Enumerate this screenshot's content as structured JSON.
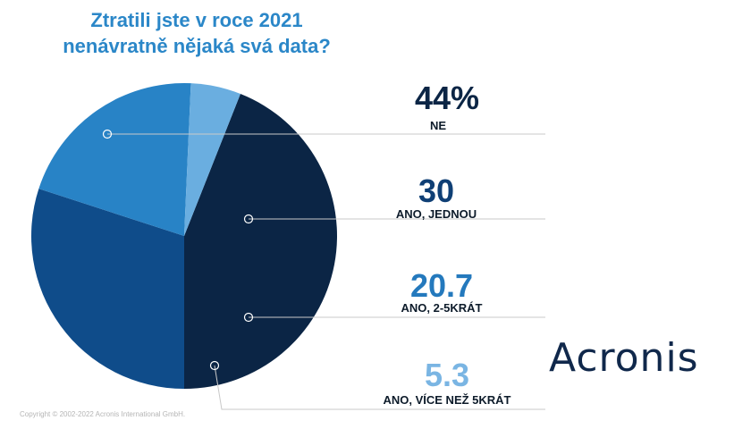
{
  "title_line1": "Ztratili jste v roce 2021",
  "title_line2": "nenávratně nějaká svá data?",
  "logo_text": "Acronis",
  "copyright": "Copyright © 2002-2022 Acronis International GmbH.",
  "chart_data": {
    "type": "pie",
    "title": "Ztratili jste v roce 2021 nenávratně nějaká svá data?",
    "slices": [
      {
        "label": "NE",
        "value_label": "44%",
        "value": 44,
        "color": "#0b2545",
        "value_color": "#0b2545"
      },
      {
        "label": "ANO, JEDNOU",
        "value_label": "30",
        "value": 30,
        "color": "#0f4c8a",
        "value_color": "#0f3f75"
      },
      {
        "label": "ANO, 2-5KRÁT",
        "value_label": "20.7",
        "value": 20.7,
        "color": "#2883c6",
        "value_color": "#2479bd"
      },
      {
        "label": "ANO, VÍCE NEŽ 5KRÁT",
        "value_label": "5.3",
        "value": 5.3,
        "color": "#6aaee0",
        "value_color": "#7ab5e3"
      }
    ]
  }
}
